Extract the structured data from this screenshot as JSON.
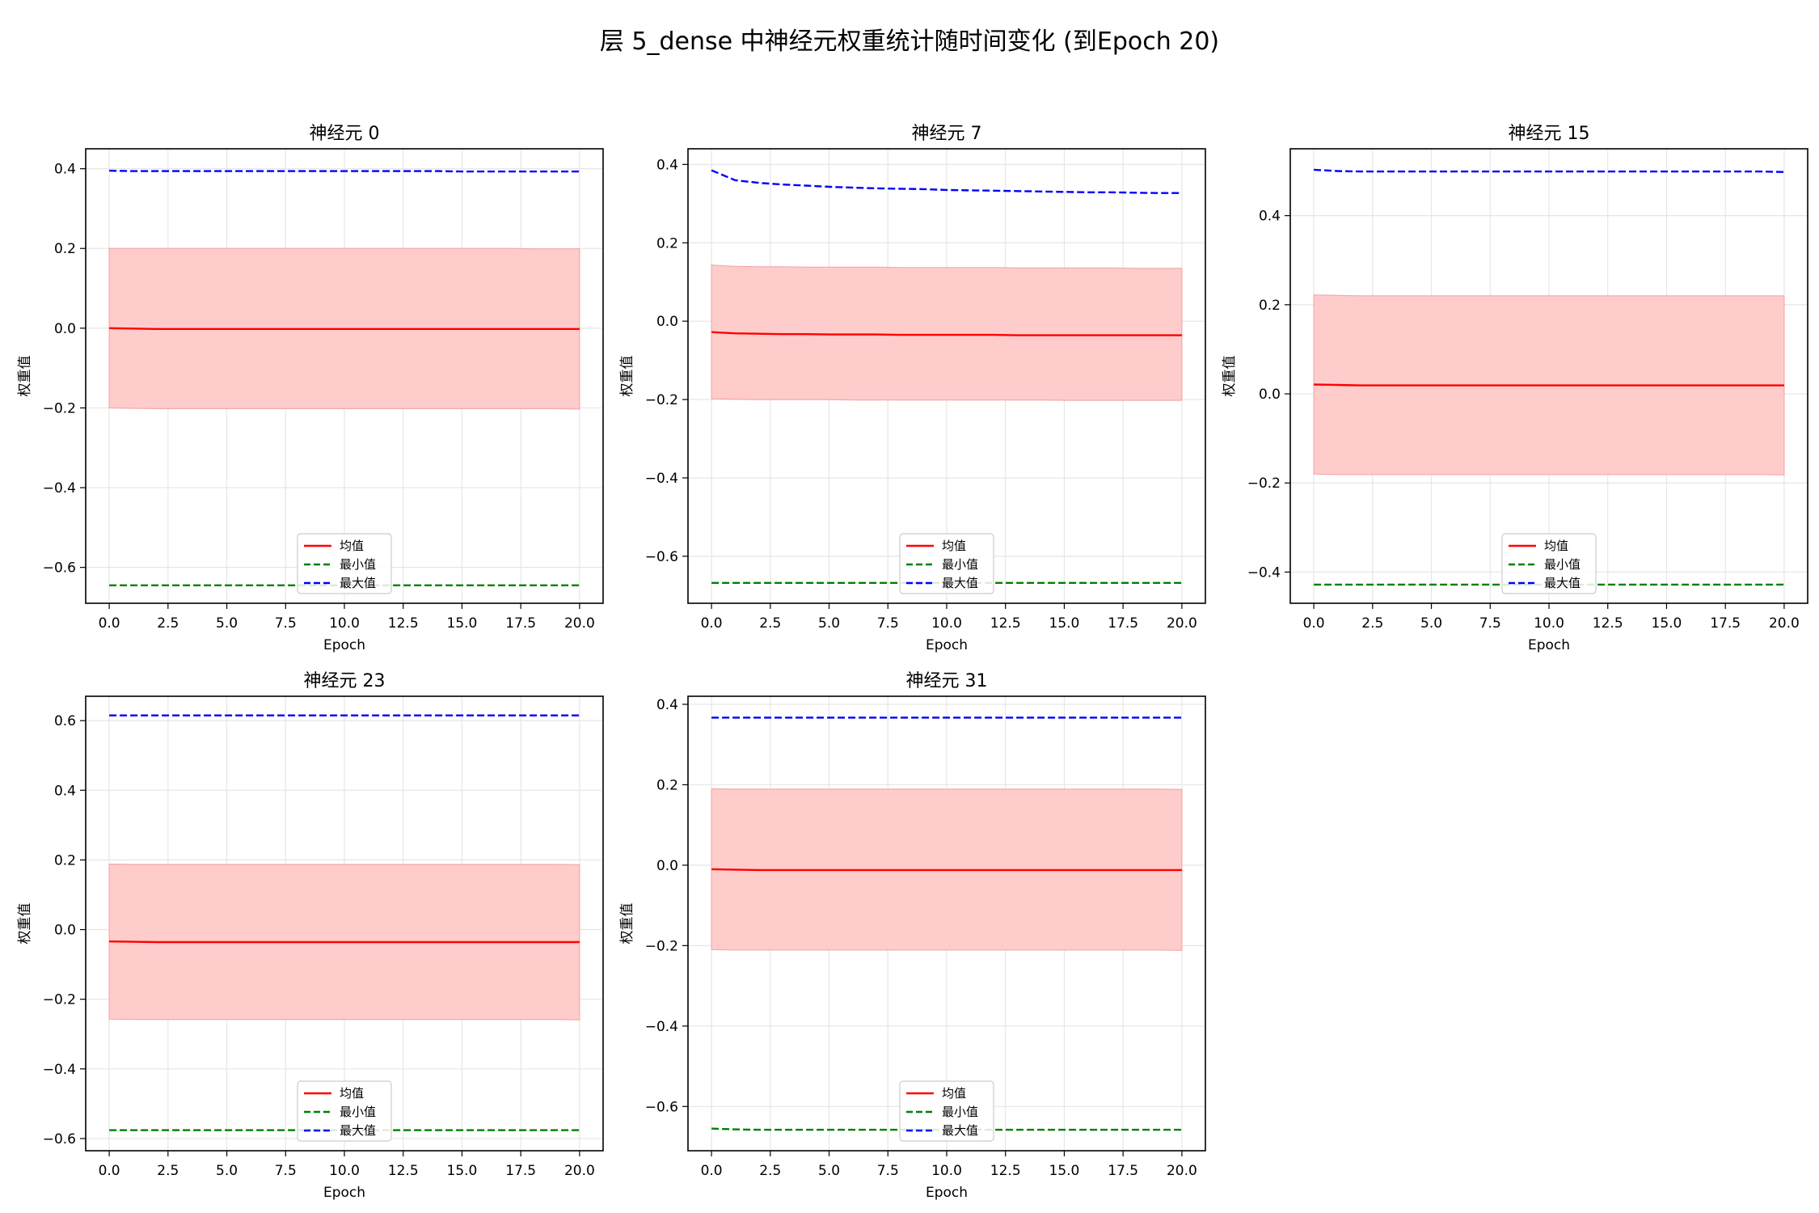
{
  "figure_title": "层 5_dense 中神经元权重统计随时间变化 (到Epoch 20)",
  "legend_labels": [
    "均值",
    "最小值",
    "最大值"
  ],
  "chart_data": [
    {
      "type": "line",
      "title": "神经元 0",
      "xlabel": "Epoch",
      "ylabel": "权重值",
      "xlim": [
        -1,
        21
      ],
      "ylim": [
        -0.69,
        0.45
      ],
      "xticks": [
        0,
        2.5,
        5,
        7.5,
        10,
        12.5,
        15,
        17.5,
        20
      ],
      "xtick_labels": [
        "0.0",
        "2.5",
        "5.0",
        "7.5",
        "10.0",
        "12.5",
        "15.0",
        "17.5",
        "20.0"
      ],
      "yticks": [
        -0.6,
        -0.4,
        -0.2,
        0.0,
        0.2,
        0.4
      ],
      "ytick_labels": [
        "−0.6",
        "−0.4",
        "−0.2",
        "0.0",
        "0.2",
        "0.4"
      ],
      "grid": true,
      "legend_position": "lower-center",
      "x": [
        0,
        1,
        2,
        3,
        4,
        5,
        6,
        7,
        8,
        9,
        10,
        11,
        12,
        13,
        14,
        15,
        16,
        17,
        18,
        19,
        20
      ],
      "band": {
        "color": "#ffcccc",
        "lower": [
          -0.2,
          -0.201,
          -0.202,
          -0.202,
          -0.202,
          -0.202,
          -0.202,
          -0.202,
          -0.202,
          -0.202,
          -0.202,
          -0.202,
          -0.202,
          -0.202,
          -0.202,
          -0.202,
          -0.202,
          -0.202,
          -0.202,
          -0.202,
          -0.203
        ],
        "upper": [
          0.2,
          0.2,
          0.2,
          0.2,
          0.2,
          0.2,
          0.2,
          0.2,
          0.2,
          0.2,
          0.2,
          0.2,
          0.2,
          0.2,
          0.2,
          0.2,
          0.2,
          0.2,
          0.199,
          0.199,
          0.199
        ]
      },
      "series": [
        {
          "name": "均值",
          "color": "#ff0000",
          "dash": "solid",
          "values": [
            0.0,
            -0.001,
            -0.002,
            -0.002,
            -0.002,
            -0.002,
            -0.002,
            -0.002,
            -0.002,
            -0.002,
            -0.002,
            -0.002,
            -0.002,
            -0.002,
            -0.002,
            -0.002,
            -0.002,
            -0.002,
            -0.002,
            -0.002,
            -0.002
          ]
        },
        {
          "name": "最小值",
          "color": "#008000",
          "dash": "dashed",
          "values": [
            -0.645,
            -0.645,
            -0.645,
            -0.645,
            -0.645,
            -0.645,
            -0.645,
            -0.645,
            -0.645,
            -0.645,
            -0.645,
            -0.645,
            -0.645,
            -0.645,
            -0.645,
            -0.645,
            -0.645,
            -0.645,
            -0.645,
            -0.645,
            -0.645
          ]
        },
        {
          "name": "最大值",
          "color": "#0000ff",
          "dash": "dashed",
          "values": [
            0.395,
            0.394,
            0.394,
            0.394,
            0.394,
            0.394,
            0.394,
            0.394,
            0.394,
            0.394,
            0.394,
            0.394,
            0.394,
            0.394,
            0.394,
            0.393,
            0.393,
            0.393,
            0.393,
            0.393,
            0.393
          ]
        }
      ]
    },
    {
      "type": "line",
      "title": "神经元 7",
      "xlabel": "Epoch",
      "ylabel": "权重值",
      "xlim": [
        -1,
        21
      ],
      "ylim": [
        -0.72,
        0.44
      ],
      "xticks": [
        0,
        2.5,
        5,
        7.5,
        10,
        12.5,
        15,
        17.5,
        20
      ],
      "xtick_labels": [
        "0.0",
        "2.5",
        "5.0",
        "7.5",
        "10.0",
        "12.5",
        "15.0",
        "17.5",
        "20.0"
      ],
      "yticks": [
        -0.6,
        -0.4,
        -0.2,
        0.0,
        0.2,
        0.4
      ],
      "ytick_labels": [
        "−0.6",
        "−0.4",
        "−0.2",
        "0.0",
        "0.2",
        "0.4"
      ],
      "grid": true,
      "legend_position": "lower-center",
      "x": [
        0,
        1,
        2,
        3,
        4,
        5,
        6,
        7,
        8,
        9,
        10,
        11,
        12,
        13,
        14,
        15,
        16,
        17,
        18,
        19,
        20
      ],
      "band": {
        "color": "#ffcccc",
        "lower": [
          -0.198,
          -0.199,
          -0.2,
          -0.2,
          -0.2,
          -0.2,
          -0.201,
          -0.201,
          -0.201,
          -0.201,
          -0.201,
          -0.201,
          -0.201,
          -0.201,
          -0.201,
          -0.202,
          -0.202,
          -0.202,
          -0.202,
          -0.202,
          -0.202
        ],
        "upper": [
          0.143,
          0.14,
          0.139,
          0.139,
          0.138,
          0.138,
          0.138,
          0.138,
          0.137,
          0.137,
          0.137,
          0.137,
          0.137,
          0.136,
          0.136,
          0.136,
          0.136,
          0.136,
          0.135,
          0.135,
          0.135
        ]
      },
      "series": [
        {
          "name": "均值",
          "color": "#ff0000",
          "dash": "solid",
          "values": [
            -0.028,
            -0.031,
            -0.032,
            -0.033,
            -0.033,
            -0.034,
            -0.034,
            -0.034,
            -0.035,
            -0.035,
            -0.035,
            -0.035,
            -0.035,
            -0.036,
            -0.036,
            -0.036,
            -0.036,
            -0.036,
            -0.036,
            -0.036,
            -0.036
          ]
        },
        {
          "name": "最小值",
          "color": "#008000",
          "dash": "dashed",
          "values": [
            -0.668,
            -0.668,
            -0.668,
            -0.668,
            -0.668,
            -0.668,
            -0.668,
            -0.668,
            -0.668,
            -0.668,
            -0.668,
            -0.668,
            -0.668,
            -0.668,
            -0.668,
            -0.668,
            -0.668,
            -0.668,
            -0.668,
            -0.668,
            -0.668
          ]
        },
        {
          "name": "最大值",
          "color": "#0000ff",
          "dash": "dashed",
          "values": [
            0.385,
            0.36,
            0.353,
            0.349,
            0.346,
            0.343,
            0.341,
            0.339,
            0.338,
            0.337,
            0.335,
            0.334,
            0.333,
            0.332,
            0.331,
            0.33,
            0.329,
            0.329,
            0.328,
            0.327,
            0.327
          ]
        }
      ]
    },
    {
      "type": "line",
      "title": "神经元 15",
      "xlabel": "Epoch",
      "ylabel": "权重值",
      "xlim": [
        -1,
        21
      ],
      "ylim": [
        -0.47,
        0.55
      ],
      "xticks": [
        0,
        2.5,
        5,
        7.5,
        10,
        12.5,
        15,
        17.5,
        20
      ],
      "xtick_labels": [
        "0.0",
        "2.5",
        "5.0",
        "7.5",
        "10.0",
        "12.5",
        "15.0",
        "17.5",
        "20.0"
      ],
      "yticks": [
        -0.4,
        -0.2,
        0.0,
        0.2,
        0.4
      ],
      "ytick_labels": [
        "−0.4",
        "−0.2",
        "0.0",
        "0.2",
        "0.4"
      ],
      "grid": true,
      "legend_position": "lower-center",
      "x": [
        0,
        1,
        2,
        3,
        4,
        5,
        6,
        7,
        8,
        9,
        10,
        11,
        12,
        13,
        14,
        15,
        16,
        17,
        18,
        19,
        20
      ],
      "band": {
        "color": "#ffcccc",
        "lower": [
          -0.18,
          -0.181,
          -0.181,
          -0.181,
          -0.181,
          -0.181,
          -0.181,
          -0.181,
          -0.181,
          -0.181,
          -0.181,
          -0.181,
          -0.181,
          -0.181,
          -0.181,
          -0.181,
          -0.181,
          -0.181,
          -0.181,
          -0.181,
          -0.182
        ],
        "upper": [
          0.222,
          0.221,
          0.22,
          0.22,
          0.22,
          0.22,
          0.22,
          0.22,
          0.22,
          0.22,
          0.22,
          0.22,
          0.22,
          0.22,
          0.22,
          0.22,
          0.22,
          0.22,
          0.22,
          0.22,
          0.22
        ]
      },
      "series": [
        {
          "name": "均值",
          "color": "#ff0000",
          "dash": "solid",
          "values": [
            0.021,
            0.02,
            0.019,
            0.019,
            0.019,
            0.019,
            0.019,
            0.019,
            0.019,
            0.019,
            0.019,
            0.019,
            0.019,
            0.019,
            0.019,
            0.019,
            0.019,
            0.019,
            0.019,
            0.019,
            0.019
          ]
        },
        {
          "name": "最小值",
          "color": "#008000",
          "dash": "dashed",
          "values": [
            -0.428,
            -0.428,
            -0.428,
            -0.428,
            -0.428,
            -0.428,
            -0.428,
            -0.428,
            -0.428,
            -0.428,
            -0.428,
            -0.428,
            -0.428,
            -0.428,
            -0.428,
            -0.428,
            -0.428,
            -0.428,
            -0.428,
            -0.428,
            -0.428
          ]
        },
        {
          "name": "最大值",
          "color": "#0000ff",
          "dash": "dashed",
          "values": [
            0.503,
            0.5,
            0.499,
            0.499,
            0.499,
            0.499,
            0.499,
            0.499,
            0.499,
            0.499,
            0.499,
            0.499,
            0.499,
            0.499,
            0.499,
            0.499,
            0.499,
            0.499,
            0.499,
            0.499,
            0.498
          ]
        }
      ]
    },
    {
      "type": "line",
      "title": "神经元 23",
      "xlabel": "Epoch",
      "ylabel": "权重值",
      "xlim": [
        -1,
        21
      ],
      "ylim": [
        -0.635,
        0.67
      ],
      "xticks": [
        0,
        2.5,
        5,
        7.5,
        10,
        12.5,
        15,
        17.5,
        20
      ],
      "xtick_labels": [
        "0.0",
        "2.5",
        "5.0",
        "7.5",
        "10.0",
        "12.5",
        "15.0",
        "17.5",
        "20.0"
      ],
      "yticks": [
        -0.6,
        -0.4,
        -0.2,
        0.0,
        0.2,
        0.4,
        0.6
      ],
      "ytick_labels": [
        "−0.6",
        "−0.4",
        "−0.2",
        "0.0",
        "0.2",
        "0.4",
        "0.6"
      ],
      "grid": true,
      "legend_position": "lower-center",
      "x": [
        0,
        1,
        2,
        3,
        4,
        5,
        6,
        7,
        8,
        9,
        10,
        11,
        12,
        13,
        14,
        15,
        16,
        17,
        18,
        19,
        20
      ],
      "band": {
        "color": "#ffcccc",
        "lower": [
          -0.257,
          -0.258,
          -0.258,
          -0.258,
          -0.258,
          -0.258,
          -0.258,
          -0.258,
          -0.258,
          -0.258,
          -0.258,
          -0.258,
          -0.258,
          -0.258,
          -0.258,
          -0.258,
          -0.258,
          -0.258,
          -0.258,
          -0.258,
          -0.259
        ],
        "upper": [
          0.188,
          0.187,
          0.187,
          0.187,
          0.187,
          0.187,
          0.187,
          0.187,
          0.187,
          0.187,
          0.187,
          0.187,
          0.187,
          0.187,
          0.187,
          0.187,
          0.187,
          0.187,
          0.187,
          0.187,
          0.186
        ]
      },
      "series": [
        {
          "name": "均值",
          "color": "#ff0000",
          "dash": "solid",
          "values": [
            -0.034,
            -0.035,
            -0.036,
            -0.036,
            -0.036,
            -0.036,
            -0.036,
            -0.036,
            -0.036,
            -0.036,
            -0.036,
            -0.036,
            -0.036,
            -0.036,
            -0.036,
            -0.036,
            -0.036,
            -0.036,
            -0.036,
            -0.036,
            -0.036
          ]
        },
        {
          "name": "最小值",
          "color": "#008000",
          "dash": "dashed",
          "values": [
            -0.576,
            -0.576,
            -0.576,
            -0.576,
            -0.576,
            -0.576,
            -0.576,
            -0.576,
            -0.576,
            -0.576,
            -0.576,
            -0.576,
            -0.576,
            -0.576,
            -0.576,
            -0.576,
            -0.576,
            -0.576,
            -0.576,
            -0.576,
            -0.576
          ]
        },
        {
          "name": "最大值",
          "color": "#0000ff",
          "dash": "dashed",
          "values": [
            0.615,
            0.615,
            0.615,
            0.615,
            0.615,
            0.615,
            0.615,
            0.615,
            0.615,
            0.615,
            0.615,
            0.615,
            0.615,
            0.615,
            0.615,
            0.615,
            0.615,
            0.615,
            0.615,
            0.615,
            0.615
          ]
        }
      ]
    },
    {
      "type": "line",
      "title": "神经元 31",
      "xlabel": "Epoch",
      "ylabel": "权重值",
      "xlim": [
        -1,
        21
      ],
      "ylim": [
        -0.71,
        0.42
      ],
      "xticks": [
        0,
        2.5,
        5,
        7.5,
        10,
        12.5,
        15,
        17.5,
        20
      ],
      "xtick_labels": [
        "0.0",
        "2.5",
        "5.0",
        "7.5",
        "10.0",
        "12.5",
        "15.0",
        "17.5",
        "20.0"
      ],
      "yticks": [
        -0.6,
        -0.4,
        -0.2,
        0.0,
        0.2,
        0.4
      ],
      "ytick_labels": [
        "−0.6",
        "−0.4",
        "−0.2",
        "0.0",
        "0.2",
        "0.4"
      ],
      "grid": true,
      "legend_position": "lower-center",
      "x": [
        0,
        1,
        2,
        3,
        4,
        5,
        6,
        7,
        8,
        9,
        10,
        11,
        12,
        13,
        14,
        15,
        16,
        17,
        18,
        19,
        20
      ],
      "band": {
        "color": "#ffcccc",
        "lower": [
          -0.21,
          -0.211,
          -0.211,
          -0.211,
          -0.211,
          -0.211,
          -0.211,
          -0.211,
          -0.211,
          -0.211,
          -0.211,
          -0.211,
          -0.211,
          -0.211,
          -0.211,
          -0.211,
          -0.211,
          -0.211,
          -0.211,
          -0.211,
          -0.212
        ],
        "upper": [
          0.19,
          0.189,
          0.189,
          0.189,
          0.189,
          0.189,
          0.189,
          0.189,
          0.189,
          0.189,
          0.189,
          0.189,
          0.189,
          0.189,
          0.189,
          0.189,
          0.189,
          0.189,
          0.189,
          0.189,
          0.188
        ]
      },
      "series": [
        {
          "name": "均值",
          "color": "#ff0000",
          "dash": "solid",
          "values": [
            -0.01,
            -0.011,
            -0.012,
            -0.012,
            -0.012,
            -0.012,
            -0.012,
            -0.012,
            -0.012,
            -0.012,
            -0.012,
            -0.012,
            -0.012,
            -0.012,
            -0.012,
            -0.012,
            -0.012,
            -0.012,
            -0.012,
            -0.012,
            -0.012
          ]
        },
        {
          "name": "最小值",
          "color": "#008000",
          "dash": "dashed",
          "values": [
            -0.655,
            -0.657,
            -0.658,
            -0.658,
            -0.658,
            -0.658,
            -0.658,
            -0.658,
            -0.658,
            -0.658,
            -0.658,
            -0.658,
            -0.658,
            -0.658,
            -0.658,
            -0.658,
            -0.658,
            -0.658,
            -0.658,
            -0.658,
            -0.658
          ]
        },
        {
          "name": "最大值",
          "color": "#0000ff",
          "dash": "dashed",
          "values": [
            0.367,
            0.367,
            0.367,
            0.367,
            0.367,
            0.367,
            0.367,
            0.367,
            0.367,
            0.367,
            0.367,
            0.367,
            0.367,
            0.367,
            0.367,
            0.367,
            0.367,
            0.367,
            0.367,
            0.367,
            0.367
          ]
        }
      ]
    }
  ]
}
